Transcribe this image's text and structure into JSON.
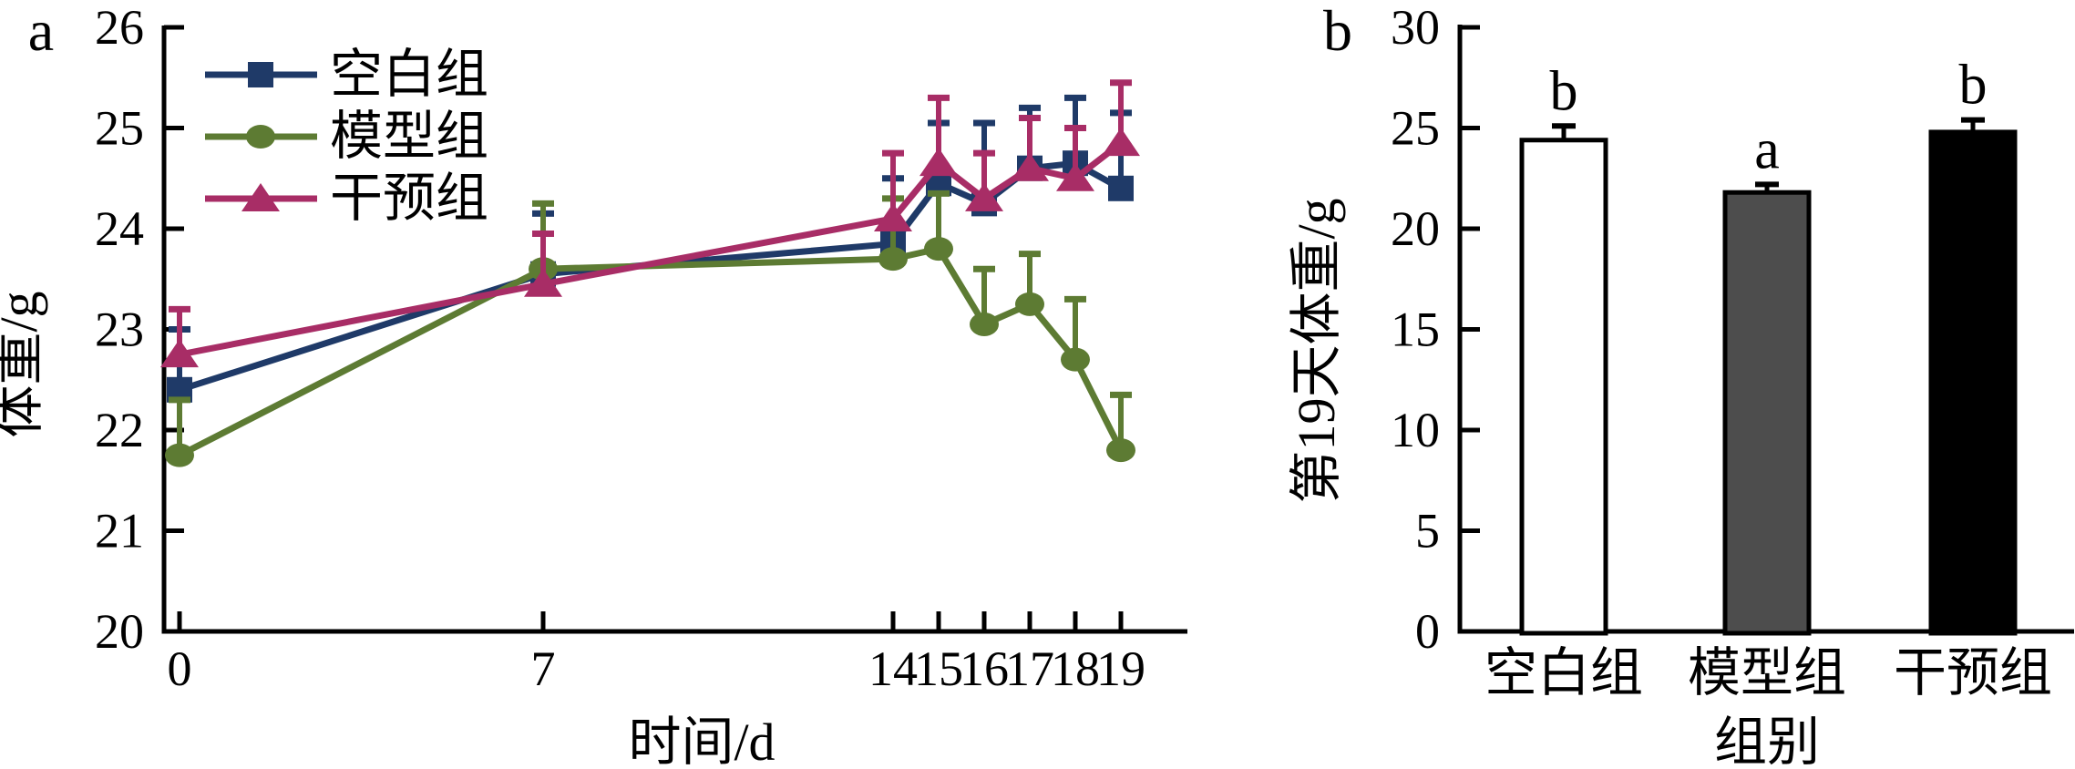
{
  "figure": {
    "background": "#ffffff",
    "axis_color": "#000000"
  },
  "chart_data": [
    {
      "type": "line",
      "panel_label": "a",
      "xlabel": "时间/d",
      "ylabel": "体重/g",
      "x": [
        0,
        7,
        14,
        15,
        16,
        17,
        18,
        19
      ],
      "xtick_labels": [
        "0",
        "7",
        "14",
        "15",
        "16",
        "17",
        "18",
        "19"
      ],
      "ylim": [
        20,
        26
      ],
      "ytick_labels": [
        "20",
        "21",
        "22",
        "23",
        "24",
        "25",
        "26"
      ],
      "grid": false,
      "legend_position": "upper-left-inside",
      "error_bars": "upper-only",
      "series": [
        {
          "name": "空白组",
          "slug": "blank-group",
          "marker": "square",
          "color": "#1f3a68",
          "values": [
            22.4,
            23.55,
            23.85,
            24.45,
            24.25,
            24.6,
            24.65,
            24.4
          ],
          "err_top": [
            23.0,
            24.15,
            24.5,
            25.05,
            25.05,
            25.2,
            25.3,
            25.15
          ]
        },
        {
          "name": "模型组",
          "slug": "model-group",
          "marker": "circle",
          "color": "#5d7b33",
          "values": [
            21.75,
            23.6,
            23.7,
            23.8,
            23.05,
            23.25,
            22.7,
            21.8
          ],
          "err_top": [
            22.3,
            24.25,
            24.3,
            24.35,
            23.6,
            23.75,
            23.3,
            22.35
          ]
        },
        {
          "name": "干预组",
          "slug": "intervention-group",
          "marker": "triangle",
          "color": "#a82d66",
          "values": [
            22.75,
            23.45,
            24.1,
            24.65,
            24.3,
            24.6,
            24.5,
            24.85
          ],
          "err_top": [
            23.2,
            23.95,
            24.75,
            25.3,
            24.75,
            25.1,
            25.0,
            25.45
          ]
        }
      ]
    },
    {
      "type": "bar",
      "panel_label": "b",
      "xlabel": "组别",
      "ylabel": "第19天体重/g",
      "categories": [
        "空白组",
        "模型组",
        "干预组"
      ],
      "slugs": [
        "blank-group",
        "model-group",
        "intervention-group"
      ],
      "values": [
        24.4,
        21.8,
        24.8
      ],
      "err_top": [
        25.1,
        22.2,
        25.4
      ],
      "sig_letters": [
        "b",
        "a",
        "b"
      ],
      "bar_fills": [
        "#ffffff",
        "#4d4d4d",
        "#000000"
      ],
      "bar_stroke": "#000000",
      "ylim": [
        0,
        30
      ],
      "ytick_labels": [
        "0",
        "5",
        "10",
        "15",
        "20",
        "25",
        "30"
      ],
      "grid": false
    }
  ]
}
